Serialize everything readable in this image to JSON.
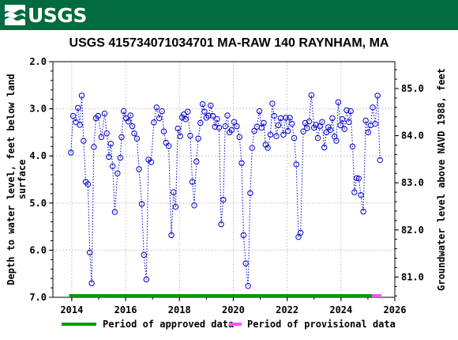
{
  "header": {
    "logo_text": "USGS",
    "colors": {
      "banner": "#006b3f",
      "logo": "#ffffff"
    }
  },
  "chart_data": {
    "type": "scatter",
    "title": "USGS 415734071034701 MA-RAW  140 RAYNHAM, MA",
    "ylabel": "Depth to water level, feet below land surface",
    "ylabel_lines": [
      "Depth to water level, feet below land",
      "surface"
    ],
    "y2label": "Groundwater level above NAVD 1988, feet",
    "xlim": [
      2013.3,
      2026.0
    ],
    "ylim": [
      7.0,
      2.0
    ],
    "y2lim": [
      80.57,
      85.57
    ],
    "xticks": [
      2014,
      2016,
      2018,
      2020,
      2022,
      2024,
      2026
    ],
    "xtick_labels": [
      "2014",
      "2016",
      "2018",
      "2020",
      "2022",
      "2024",
      "2026"
    ],
    "yticks": [
      2.0,
      3.0,
      4.0,
      5.0,
      6.0,
      7.0
    ],
    "ytick_labels": [
      "2.0",
      "3.0",
      "4.0",
      "5.0",
      "6.0",
      "7.0"
    ],
    "y2ticks": [
      81.0,
      82.0,
      83.0,
      84.0,
      85.0
    ],
    "y2tick_labels": [
      "81.0",
      "82.0",
      "83.0",
      "84.0",
      "85.0"
    ],
    "grid": true,
    "series_style": {
      "color": "#0000cc",
      "marker": "circle-open",
      "line": "dotted"
    },
    "legend_position": "bottom",
    "legend": [
      {
        "label": "Period of approved data",
        "color": "#009900"
      },
      {
        "label": "Period of provisional data",
        "color": "#ff55ff"
      }
    ],
    "periods": [
      {
        "kind": "approved",
        "start": 2013.9,
        "end": 2025.15
      },
      {
        "kind": "provisional",
        "start": 2025.15,
        "end": 2025.5
      }
    ],
    "points": [
      [
        2013.97,
        3.93
      ],
      [
        2014.05,
        3.15
      ],
      [
        2014.15,
        3.28
      ],
      [
        2014.23,
        2.98
      ],
      [
        2014.3,
        3.34
      ],
      [
        2014.37,
        2.72
      ],
      [
        2014.44,
        3.68
      ],
      [
        2014.52,
        4.55
      ],
      [
        2014.6,
        4.6
      ],
      [
        2014.67,
        6.05
      ],
      [
        2014.74,
        6.7
      ],
      [
        2014.82,
        3.81
      ],
      [
        2014.9,
        3.2
      ],
      [
        2014.98,
        3.15
      ],
      [
        2015.1,
        3.6
      ],
      [
        2015.22,
        3.1
      ],
      [
        2015.3,
        3.52
      ],
      [
        2015.38,
        4.02
      ],
      [
        2015.45,
        3.74
      ],
      [
        2015.52,
        4.22
      ],
      [
        2015.6,
        5.19
      ],
      [
        2015.7,
        4.37
      ],
      [
        2015.8,
        4.04
      ],
      [
        2015.85,
        3.6
      ],
      [
        2015.93,
        3.05
      ],
      [
        2016.02,
        3.2
      ],
      [
        2016.1,
        3.27
      ],
      [
        2016.18,
        3.14
      ],
      [
        2016.25,
        3.37
      ],
      [
        2016.32,
        3.52
      ],
      [
        2016.42,
        3.63
      ],
      [
        2016.5,
        4.28
      ],
      [
        2016.6,
        5.02
      ],
      [
        2016.68,
        6.1
      ],
      [
        2016.77,
        6.62
      ],
      [
        2016.85,
        4.08
      ],
      [
        2016.95,
        4.13
      ],
      [
        2017.05,
        3.29
      ],
      [
        2017.15,
        2.97
      ],
      [
        2017.25,
        3.2
      ],
      [
        2017.35,
        3.05
      ],
      [
        2017.42,
        3.48
      ],
      [
        2017.5,
        3.72
      ],
      [
        2017.6,
        3.79
      ],
      [
        2017.7,
        5.68
      ],
      [
        2017.78,
        4.77
      ],
      [
        2017.86,
        5.08
      ],
      [
        2017.94,
        3.42
      ],
      [
        2018.03,
        3.58
      ],
      [
        2018.1,
        3.18
      ],
      [
        2018.16,
        3.12
      ],
      [
        2018.23,
        3.22
      ],
      [
        2018.31,
        3.06
      ],
      [
        2018.4,
        3.57
      ],
      [
        2018.48,
        4.55
      ],
      [
        2018.55,
        5.05
      ],
      [
        2018.63,
        4.12
      ],
      [
        2018.7,
        3.63
      ],
      [
        2018.78,
        3.3
      ],
      [
        2018.86,
        2.9
      ],
      [
        2018.93,
        3.06
      ],
      [
        2019.0,
        3.19
      ],
      [
        2019.08,
        3.15
      ],
      [
        2019.16,
        2.93
      ],
      [
        2019.24,
        3.15
      ],
      [
        2019.32,
        3.38
      ],
      [
        2019.4,
        3.22
      ],
      [
        2019.47,
        3.4
      ],
      [
        2019.55,
        5.45
      ],
      [
        2019.63,
        4.93
      ],
      [
        2019.7,
        3.37
      ],
      [
        2019.78,
        3.14
      ],
      [
        2019.86,
        3.5
      ],
      [
        2019.94,
        3.45
      ],
      [
        2020.03,
        3.28
      ],
      [
        2020.13,
        3.37
      ],
      [
        2020.23,
        3.6
      ],
      [
        2020.31,
        4.15
      ],
      [
        2020.38,
        5.68
      ],
      [
        2020.46,
        6.28
      ],
      [
        2020.55,
        6.76
      ],
      [
        2020.63,
        4.79
      ],
      [
        2020.7,
        3.83
      ],
      [
        2020.78,
        3.47
      ],
      [
        2020.88,
        3.38
      ],
      [
        2020.97,
        3.05
      ],
      [
        2021.05,
        3.4
      ],
      [
        2021.13,
        3.3
      ],
      [
        2021.2,
        3.76
      ],
      [
        2021.28,
        3.83
      ],
      [
        2021.38,
        3.55
      ],
      [
        2021.45,
        2.89
      ],
      [
        2021.52,
        3.15
      ],
      [
        2021.6,
        3.58
      ],
      [
        2021.67,
        3.35
      ],
      [
        2021.76,
        3.2
      ],
      [
        2021.86,
        3.55
      ],
      [
        2021.95,
        3.19
      ],
      [
        2022.03,
        3.47
      ],
      [
        2022.1,
        3.19
      ],
      [
        2022.18,
        3.32
      ],
      [
        2022.26,
        3.62
      ],
      [
        2022.34,
        4.18
      ],
      [
        2022.42,
        5.72
      ],
      [
        2022.5,
        5.63
      ],
      [
        2022.6,
        3.48
      ],
      [
        2022.67,
        3.3
      ],
      [
        2022.74,
        3.41
      ],
      [
        2022.82,
        3.27
      ],
      [
        2022.9,
        2.71
      ],
      [
        2023.0,
        3.4
      ],
      [
        2023.07,
        3.34
      ],
      [
        2023.14,
        3.62
      ],
      [
        2023.22,
        3.37
      ],
      [
        2023.3,
        3.28
      ],
      [
        2023.38,
        3.82
      ],
      [
        2023.46,
        3.5
      ],
      [
        2023.53,
        3.39
      ],
      [
        2023.6,
        3.45
      ],
      [
        2023.68,
        3.2
      ],
      [
        2023.76,
        3.59
      ],
      [
        2023.83,
        3.68
      ],
      [
        2023.9,
        2.86
      ],
      [
        2023.98,
        3.35
      ],
      [
        2024.05,
        3.22
      ],
      [
        2024.13,
        3.43
      ],
      [
        2024.21,
        3.03
      ],
      [
        2024.29,
        3.28
      ],
      [
        2024.36,
        3.05
      ],
      [
        2024.43,
        3.8
      ],
      [
        2024.5,
        4.77
      ],
      [
        2024.58,
        4.47
      ],
      [
        2024.66,
        4.48
      ],
      [
        2024.74,
        4.83
      ],
      [
        2024.83,
        5.18
      ],
      [
        2024.92,
        3.25
      ],
      [
        2025.01,
        3.5
      ],
      [
        2025.1,
        3.35
      ],
      [
        2025.18,
        2.97
      ],
      [
        2025.27,
        3.32
      ],
      [
        2025.36,
        2.72
      ],
      [
        2025.45,
        4.09
      ]
    ]
  }
}
